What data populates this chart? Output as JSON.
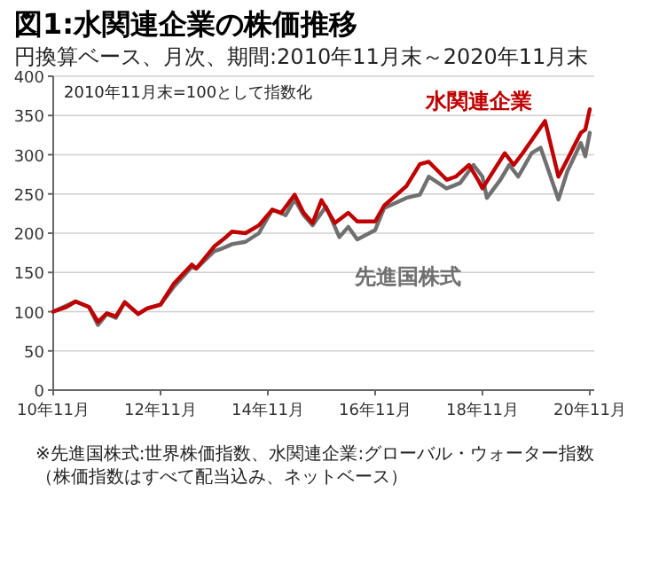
{
  "chart_data": {
    "type": "line",
    "title": "図1:水関連企業の株価推移",
    "subtitle": "円換算ベース、月次、期間:2010年11月末～2020年11月末",
    "annotations": [
      "2010年11月末=100として指数化",
      "※先進国株式:世界株価指数、水関連企業:グローバル・ウォーター指数（株価指数はすべて配当込み、ネットベース）"
    ],
    "xlim": [
      "2010-11",
      "2020-12"
    ],
    "xticks": [
      {
        "value": "2010-11",
        "label": "10年11月"
      },
      {
        "value": "2012-11",
        "label": "12年11月"
      },
      {
        "value": "2014-11",
        "label": "14年11月"
      },
      {
        "value": "2016-11",
        "label": "16年11月"
      },
      {
        "value": "2018-11",
        "label": "18年11月"
      },
      {
        "value": "2020-11",
        "label": "20年11月"
      }
    ],
    "ylim": [
      0,
      400
    ],
    "yticks": [
      0,
      50,
      100,
      150,
      200,
      250,
      300,
      350,
      400
    ],
    "grid": "y",
    "line_style": "solid",
    "marker": "none",
    "series": [
      {
        "name": "先進国株式",
        "color": "#707070",
        "x": [
          "2010-11",
          "2011-04",
          "2011-07",
          "2011-09",
          "2011-11",
          "2012-01",
          "2012-03",
          "2012-06",
          "2012-08",
          "2012-11",
          "2013-02",
          "2013-06",
          "2013-07",
          "2013-11",
          "2014-01",
          "2014-03",
          "2014-06",
          "2014-09",
          "2014-12",
          "2015-03",
          "2015-05",
          "2015-07",
          "2015-09",
          "2015-12",
          "2016-03",
          "2016-05",
          "2016-07",
          "2016-11",
          "2017-01",
          "2017-06",
          "2017-09",
          "2017-11",
          "2018-03",
          "2018-06",
          "2018-09",
          "2018-11",
          "2018-12",
          "2019-03",
          "2019-05",
          "2019-07",
          "2019-10",
          "2019-12",
          "2020-04",
          "2020-06",
          "2020-09",
          "2020-10",
          "2020-11"
        ],
        "values": [
          100,
          113,
          106,
          83,
          97,
          92,
          112,
          97,
          104,
          109,
          132,
          157,
          155,
          177,
          181,
          186,
          189,
          200,
          230,
          223,
          243,
          223,
          210,
          234,
          195,
          208,
          192,
          204,
          232,
          245,
          249,
          272,
          257,
          264,
          287,
          272,
          245,
          268,
          287,
          272,
          302,
          309,
          243,
          279,
          315,
          298,
          328
        ]
      },
      {
        "name": "水関連企業",
        "color": "#c00000",
        "x": [
          "2010-11",
          "2011-02",
          "2011-04",
          "2011-07",
          "2011-09",
          "2011-11",
          "2012-01",
          "2012-03",
          "2012-06",
          "2012-08",
          "2012-11",
          "2013-02",
          "2013-06",
          "2013-07",
          "2013-11",
          "2014-01",
          "2014-03",
          "2014-06",
          "2014-09",
          "2014-12",
          "2015-02",
          "2015-05",
          "2015-07",
          "2015-09",
          "2015-11",
          "2016-02",
          "2016-05",
          "2016-07",
          "2016-11",
          "2017-01",
          "2017-06",
          "2017-09",
          "2017-11",
          "2018-03",
          "2018-05",
          "2018-08",
          "2018-10",
          "2018-11",
          "2019-01",
          "2019-04",
          "2019-06",
          "2019-08",
          "2020-01",
          "2020-04",
          "2020-06",
          "2020-09",
          "2020-10",
          "2020-11"
        ],
        "values": [
          100,
          106,
          113,
          106,
          87,
          98,
          94,
          112,
          97,
          104,
          109,
          136,
          160,
          155,
          183,
          192,
          202,
          200,
          210,
          230,
          226,
          249,
          226,
          213,
          242,
          213,
          226,
          215,
          215,
          235,
          260,
          288,
          291,
          268,
          272,
          287,
          268,
          257,
          275,
          302,
          287,
          302,
          343,
          272,
          294,
          328,
          332,
          358
        ]
      }
    ]
  }
}
